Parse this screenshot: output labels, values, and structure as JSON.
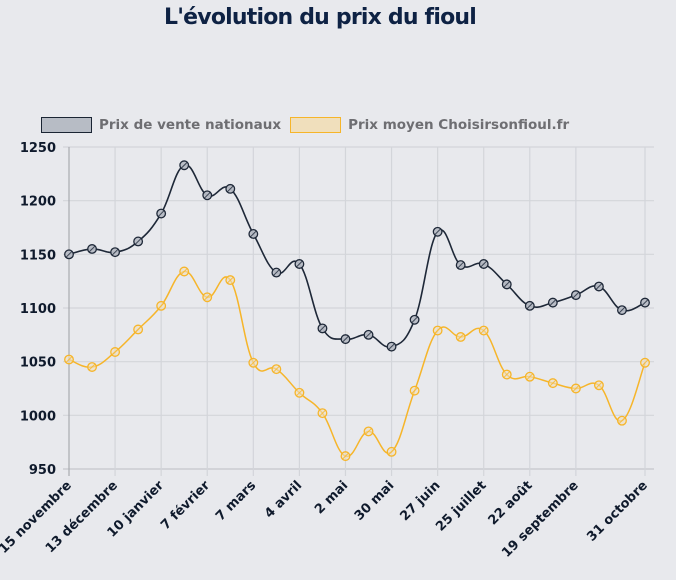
{
  "title": "L'évolution du prix du fioul",
  "chart_data": {
    "type": "line",
    "title": "L'évolution du prix du fioul",
    "xlabel": "",
    "ylabel": "",
    "ylim": [
      950,
      1250
    ],
    "yticks": [
      950,
      1000,
      1050,
      1100,
      1150,
      1200,
      1250
    ],
    "grid": true,
    "legend_position": "top-left",
    "x_tick_labels": [
      {
        "index": 0,
        "label": "15 novembre"
      },
      {
        "index": 2,
        "label": "13 décembre"
      },
      {
        "index": 4,
        "label": "10 janvier"
      },
      {
        "index": 6,
        "label": "7 février"
      },
      {
        "index": 8,
        "label": "7 mars"
      },
      {
        "index": 10,
        "label": "4 avril"
      },
      {
        "index": 12,
        "label": "2 mai"
      },
      {
        "index": 14,
        "label": "30 mai"
      },
      {
        "index": 16,
        "label": "27 juin"
      },
      {
        "index": 18,
        "label": "25 juillet"
      },
      {
        "index": 20,
        "label": "22 août"
      },
      {
        "index": 22,
        "label": "19 septembre"
      },
      {
        "index": 25,
        "label": "31 octobre"
      }
    ],
    "point_count": 26,
    "series": [
      {
        "name": "Prix de vente nationaux",
        "color": "#1e2838",
        "fill": "#b7bcc5",
        "values": [
          1150,
          1155,
          1152,
          1162,
          1188,
          1233,
          1205,
          1211,
          1169,
          1133,
          1141,
          1081,
          1071,
          1075,
          1064,
          1089,
          1171,
          1140,
          1141,
          1122,
          1102,
          1105,
          1112,
          1120,
          1098,
          1105
        ]
      },
      {
        "name": "Prix moyen Choisirsonfioul.fr",
        "color": "#f6b52a",
        "fill": "#f0dfbc",
        "values": [
          1052,
          1045,
          1059,
          1080,
          1102,
          1134,
          1110,
          1126,
          1049,
          1043,
          1021,
          1002,
          962,
          985,
          966,
          1023,
          1079,
          1073,
          1079,
          1038,
          1036,
          1030,
          1025,
          1028,
          995,
          1049
        ]
      }
    ]
  }
}
